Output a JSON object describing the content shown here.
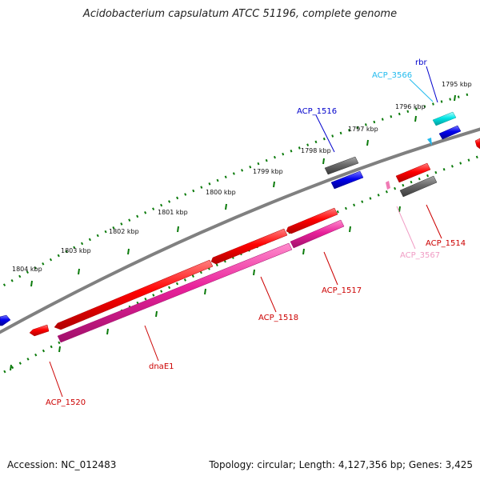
{
  "title": "Acidobacterium capsulatum ATCC 51196, complete genome",
  "accession": "Accession: NC_012483",
  "summary": "Topology: circular; Length: 4,127,356 bp; Genes: 3,425",
  "colors": {
    "backbone": "#808080",
    "ticks": "#0a7a0a",
    "red": "#ff0000",
    "magenta": "#e8209a",
    "gray": "#6a6a6a",
    "blue": "#0000ee",
    "cyan": "#00e5e5",
    "pink": "#f07ab4",
    "label_red": "#cc0000",
    "label_blue": "#0000cc",
    "label_cyan": "#22bbee",
    "label_pink": "#f09cc4"
  },
  "scale_ticks": [
    "1795 kbp",
    "1796 kbp",
    "1797 kbp",
    "1798 kbp",
    "1799 kbp",
    "1800 kbp",
    "1801 kbp",
    "1802 kbp",
    "1803 kbp",
    "1804 kbp"
  ],
  "genes": [
    {
      "name": "rbr",
      "color": "blue"
    },
    {
      "name": "ACP_3566",
      "color": "cyan"
    },
    {
      "name": "ACP_1516",
      "color": "blue"
    },
    {
      "name": "ACP_1514",
      "color": "red"
    },
    {
      "name": "ACP_3567",
      "color": "pink"
    },
    {
      "name": "ACP_1517",
      "color": "red"
    },
    {
      "name": "ACP_1518",
      "color": "red"
    },
    {
      "name": "dnaE1",
      "color": "red"
    },
    {
      "name": "ACP_1520",
      "color": "red"
    }
  ]
}
